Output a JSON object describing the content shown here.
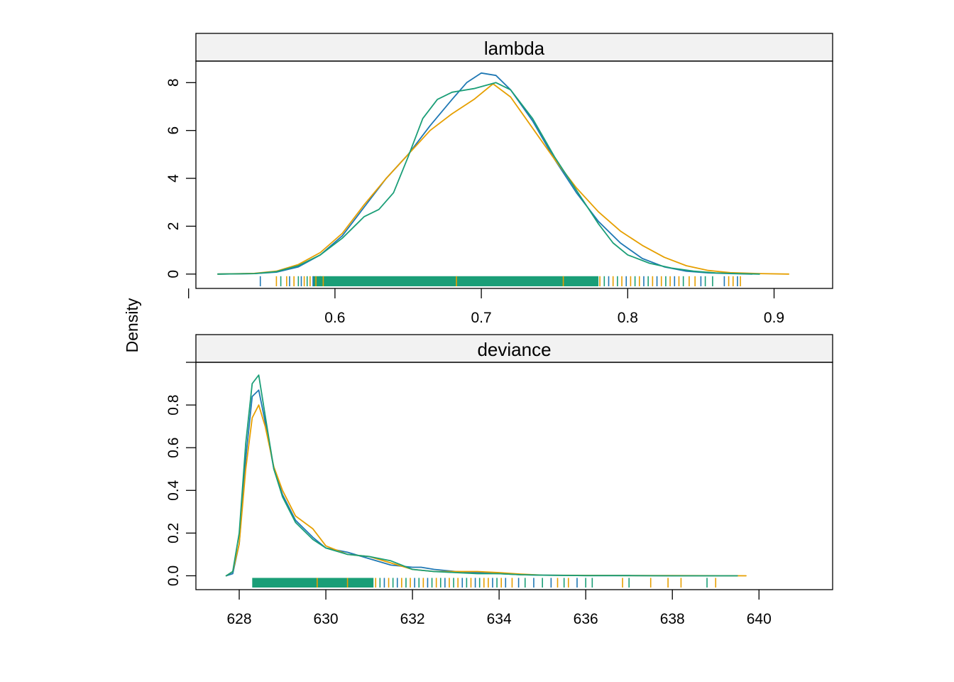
{
  "colors": {
    "chain1": "#1F78B4",
    "chain2": "#E69F00",
    "chain3": "#1A9E77",
    "strip_bg": "#F2F2F2",
    "frame": "#000000"
  },
  "figure": {
    "ylabel": "Density"
  },
  "chart_data": [
    {
      "type": "line",
      "panel": "lambda",
      "title": "lambda",
      "xlim": [
        0.505,
        0.94
      ],
      "ylim": [
        -0.6,
        8.9
      ],
      "xticks": [
        0.6,
        0.7,
        0.8,
        0.9
      ],
      "xtick_labels": [
        "0.6",
        "0.7",
        "0.8",
        "0.9"
      ],
      "extra_xticks": [
        0.5
      ],
      "yticks": [
        0,
        2,
        4,
        6,
        8
      ],
      "ytick_labels": [
        "0",
        "2",
        "4",
        "6",
        "8"
      ],
      "grid": false,
      "series": [
        {
          "color_key": "chain1",
          "x": [
            0.52,
            0.545,
            0.56,
            0.575,
            0.59,
            0.605,
            0.62,
            0.635,
            0.65,
            0.665,
            0.68,
            0.69,
            0.7,
            0.71,
            0.72,
            0.735,
            0.75,
            0.765,
            0.78,
            0.795,
            0.81,
            0.825,
            0.84,
            0.855,
            0.87,
            0.885
          ],
          "y": [
            0.0,
            0.02,
            0.08,
            0.3,
            0.8,
            1.6,
            2.8,
            4.0,
            5.0,
            6.2,
            7.3,
            8.0,
            8.4,
            8.3,
            7.7,
            6.4,
            4.8,
            3.4,
            2.2,
            1.3,
            0.65,
            0.3,
            0.12,
            0.05,
            0.02,
            0.0
          ]
        },
        {
          "color_key": "chain2",
          "x": [
            0.52,
            0.545,
            0.56,
            0.575,
            0.59,
            0.605,
            0.62,
            0.635,
            0.65,
            0.665,
            0.68,
            0.695,
            0.708,
            0.72,
            0.735,
            0.75,
            0.765,
            0.78,
            0.795,
            0.81,
            0.825,
            0.84,
            0.855,
            0.87,
            0.89,
            0.91
          ],
          "y": [
            0.0,
            0.03,
            0.12,
            0.4,
            0.9,
            1.7,
            2.9,
            4.0,
            5.0,
            6.0,
            6.7,
            7.3,
            7.95,
            7.4,
            6.1,
            4.8,
            3.6,
            2.6,
            1.8,
            1.2,
            0.7,
            0.35,
            0.15,
            0.06,
            0.02,
            0.0
          ]
        },
        {
          "color_key": "chain3",
          "x": [
            0.52,
            0.545,
            0.56,
            0.575,
            0.59,
            0.605,
            0.62,
            0.63,
            0.64,
            0.65,
            0.66,
            0.67,
            0.68,
            0.695,
            0.71,
            0.72,
            0.735,
            0.75,
            0.765,
            0.78,
            0.79,
            0.8,
            0.815,
            0.83,
            0.845,
            0.86,
            0.875,
            0.89
          ],
          "y": [
            0.0,
            0.02,
            0.1,
            0.35,
            0.8,
            1.5,
            2.4,
            2.7,
            3.4,
            4.9,
            6.5,
            7.3,
            7.6,
            7.75,
            8.0,
            7.7,
            6.5,
            4.9,
            3.5,
            2.1,
            1.3,
            0.8,
            0.45,
            0.25,
            0.12,
            0.05,
            0.02,
            0.0
          ]
        }
      ],
      "rug": {
        "dense_range": [
          0.585,
          0.78
        ],
        "dense_color_key": "chain3",
        "ticks": [
          {
            "x": 0.549,
            "color_key": "chain1"
          },
          {
            "x": 0.56,
            "color_key": "chain2"
          },
          {
            "x": 0.563,
            "color_key": "chain3"
          },
          {
            "x": 0.567,
            "color_key": "chain2"
          },
          {
            "x": 0.569,
            "color_key": "chain1"
          },
          {
            "x": 0.572,
            "color_key": "chain2"
          },
          {
            "x": 0.575,
            "color_key": "chain3"
          },
          {
            "x": 0.577,
            "color_key": "chain1"
          },
          {
            "x": 0.579,
            "color_key": "chain2"
          },
          {
            "x": 0.581,
            "color_key": "chain3"
          },
          {
            "x": 0.583,
            "color_key": "chain2"
          },
          {
            "x": 0.585,
            "color_key": "chain1"
          },
          {
            "x": 0.587,
            "color_key": "chain2"
          },
          {
            "x": 0.59,
            "color_key": "chain3"
          },
          {
            "x": 0.592,
            "color_key": "chain2"
          },
          {
            "x": 0.683,
            "color_key": "chain2"
          },
          {
            "x": 0.756,
            "color_key": "chain2"
          },
          {
            "x": 0.781,
            "color_key": "chain2"
          },
          {
            "x": 0.784,
            "color_key": "chain3"
          },
          {
            "x": 0.787,
            "color_key": "chain1"
          },
          {
            "x": 0.79,
            "color_key": "chain2"
          },
          {
            "x": 0.793,
            "color_key": "chain3"
          },
          {
            "x": 0.796,
            "color_key": "chain2"
          },
          {
            "x": 0.799,
            "color_key": "chain1"
          },
          {
            "x": 0.802,
            "color_key": "chain2"
          },
          {
            "x": 0.805,
            "color_key": "chain3"
          },
          {
            "x": 0.808,
            "color_key": "chain2"
          },
          {
            "x": 0.811,
            "color_key": "chain1"
          },
          {
            "x": 0.814,
            "color_key": "chain3"
          },
          {
            "x": 0.817,
            "color_key": "chain2"
          },
          {
            "x": 0.82,
            "color_key": "chain1"
          },
          {
            "x": 0.823,
            "color_key": "chain2"
          },
          {
            "x": 0.826,
            "color_key": "chain3"
          },
          {
            "x": 0.829,
            "color_key": "chain2"
          },
          {
            "x": 0.832,
            "color_key": "chain1"
          },
          {
            "x": 0.835,
            "color_key": "chain2"
          },
          {
            "x": 0.838,
            "color_key": "chain3"
          },
          {
            "x": 0.842,
            "color_key": "chain2"
          },
          {
            "x": 0.846,
            "color_key": "chain2"
          },
          {
            "x": 0.85,
            "color_key": "chain1"
          },
          {
            "x": 0.853,
            "color_key": "chain3"
          },
          {
            "x": 0.858,
            "color_key": "chain3"
          },
          {
            "x": 0.866,
            "color_key": "chain1"
          },
          {
            "x": 0.869,
            "color_key": "chain2"
          },
          {
            "x": 0.872,
            "color_key": "chain2"
          },
          {
            "x": 0.875,
            "color_key": "chain1"
          },
          {
            "x": 0.877,
            "color_key": "chain2"
          }
        ]
      }
    },
    {
      "type": "line",
      "panel": "deviance",
      "title": "deviance",
      "xlim": [
        627.0,
        641.7
      ],
      "ylim": [
        -0.065,
        1.0
      ],
      "xticks": [
        628,
        630,
        632,
        634,
        636,
        638,
        640
      ],
      "xtick_labels": [
        "628",
        "630",
        "632",
        "634",
        "636",
        "638",
        "640"
      ],
      "extra_yticks": [
        1.0
      ],
      "yticks": [
        0.0,
        0.2,
        0.4,
        0.6,
        0.8
      ],
      "ytick_labels": [
        "0.0",
        "0.2",
        "0.4",
        "0.6",
        "0.8"
      ],
      "grid": false,
      "series": [
        {
          "color_key": "chain1",
          "x": [
            627.7,
            627.85,
            628.0,
            628.15,
            628.3,
            628.45,
            628.6,
            628.8,
            629.0,
            629.3,
            629.7,
            630.0,
            630.5,
            631.0,
            631.5,
            632.0,
            632.2,
            632.5,
            633.0,
            633.5,
            634.0,
            634.5,
            635.0,
            636.0,
            637.0,
            638.0,
            639.5
          ],
          "y": [
            0.0,
            0.01,
            0.15,
            0.55,
            0.84,
            0.87,
            0.72,
            0.5,
            0.38,
            0.26,
            0.18,
            0.13,
            0.11,
            0.08,
            0.05,
            0.04,
            0.04,
            0.03,
            0.02,
            0.015,
            0.01,
            0.005,
            0.003,
            0.001,
            0.001,
            0.0,
            0.0
          ]
        },
        {
          "color_key": "chain2",
          "x": [
            627.7,
            627.85,
            628.0,
            628.15,
            628.3,
            628.45,
            628.6,
            628.8,
            629.0,
            629.3,
            629.7,
            630.0,
            630.5,
            631.0,
            631.5,
            632.0,
            632.5,
            633.0,
            633.5,
            634.0,
            634.5,
            635.0,
            636.0,
            637.0,
            638.0,
            639.7
          ],
          "y": [
            0.0,
            0.02,
            0.15,
            0.5,
            0.74,
            0.8,
            0.7,
            0.51,
            0.4,
            0.28,
            0.22,
            0.14,
            0.1,
            0.09,
            0.06,
            0.03,
            0.02,
            0.02,
            0.02,
            0.015,
            0.008,
            0.003,
            0.002,
            0.001,
            0.001,
            0.0
          ]
        },
        {
          "color_key": "chain3",
          "x": [
            627.7,
            627.85,
            628.0,
            628.15,
            628.3,
            628.45,
            628.6,
            628.8,
            629.0,
            629.3,
            629.7,
            630.0,
            630.5,
            631.0,
            631.5,
            632.0,
            632.5,
            633.0,
            633.5,
            634.0,
            634.5,
            635.0,
            636.0,
            637.0,
            638.0,
            639.5
          ],
          "y": [
            0.0,
            0.02,
            0.2,
            0.62,
            0.9,
            0.94,
            0.75,
            0.5,
            0.37,
            0.25,
            0.17,
            0.13,
            0.1,
            0.09,
            0.07,
            0.03,
            0.02,
            0.015,
            0.01,
            0.01,
            0.005,
            0.003,
            0.001,
            0.001,
            0.0,
            0.0
          ]
        }
      ],
      "rug": {
        "dense_range": [
          628.3,
          631.1
        ],
        "dense_color_key": "chain3",
        "ticks": [
          {
            "x": 629.8,
            "color_key": "chain2"
          },
          {
            "x": 630.5,
            "color_key": "chain2"
          },
          {
            "x": 631.15,
            "color_key": "chain2"
          },
          {
            "x": 631.25,
            "color_key": "chain3"
          },
          {
            "x": 631.35,
            "color_key": "chain1"
          },
          {
            "x": 631.45,
            "color_key": "chain2"
          },
          {
            "x": 631.55,
            "color_key": "chain3"
          },
          {
            "x": 631.65,
            "color_key": "chain1"
          },
          {
            "x": 631.75,
            "color_key": "chain2"
          },
          {
            "x": 631.85,
            "color_key": "chain3"
          },
          {
            "x": 631.95,
            "color_key": "chain2"
          },
          {
            "x": 632.05,
            "color_key": "chain1"
          },
          {
            "x": 632.15,
            "color_key": "chain3"
          },
          {
            "x": 632.25,
            "color_key": "chain2"
          },
          {
            "x": 632.35,
            "color_key": "chain1"
          },
          {
            "x": 632.45,
            "color_key": "chain3"
          },
          {
            "x": 632.55,
            "color_key": "chain2"
          },
          {
            "x": 632.65,
            "color_key": "chain3"
          },
          {
            "x": 632.75,
            "color_key": "chain1"
          },
          {
            "x": 632.85,
            "color_key": "chain2"
          },
          {
            "x": 632.95,
            "color_key": "chain3"
          },
          {
            "x": 633.05,
            "color_key": "chain2"
          },
          {
            "x": 633.15,
            "color_key": "chain1"
          },
          {
            "x": 633.25,
            "color_key": "chain3"
          },
          {
            "x": 633.35,
            "color_key": "chain2"
          },
          {
            "x": 633.45,
            "color_key": "chain1"
          },
          {
            "x": 633.55,
            "color_key": "chain3"
          },
          {
            "x": 633.65,
            "color_key": "chain2"
          },
          {
            "x": 633.75,
            "color_key": "chain2"
          },
          {
            "x": 633.85,
            "color_key": "chain1"
          },
          {
            "x": 633.95,
            "color_key": "chain3"
          },
          {
            "x": 634.05,
            "color_key": "chain2"
          },
          {
            "x": 634.15,
            "color_key": "chain1"
          },
          {
            "x": 634.3,
            "color_key": "chain2"
          },
          {
            "x": 634.45,
            "color_key": "chain1"
          },
          {
            "x": 634.6,
            "color_key": "chain3"
          },
          {
            "x": 634.8,
            "color_key": "chain1"
          },
          {
            "x": 635.0,
            "color_key": "chain3"
          },
          {
            "x": 635.2,
            "color_key": "chain1"
          },
          {
            "x": 635.35,
            "color_key": "chain2"
          },
          {
            "x": 635.5,
            "color_key": "chain3"
          },
          {
            "x": 635.6,
            "color_key": "chain2"
          },
          {
            "x": 635.8,
            "color_key": "chain1"
          },
          {
            "x": 636.0,
            "color_key": "chain3"
          },
          {
            "x": 636.15,
            "color_key": "chain3"
          },
          {
            "x": 636.85,
            "color_key": "chain2"
          },
          {
            "x": 637.0,
            "color_key": "chain3"
          },
          {
            "x": 637.5,
            "color_key": "chain2"
          },
          {
            "x": 637.9,
            "color_key": "chain2"
          },
          {
            "x": 638.2,
            "color_key": "chain2"
          },
          {
            "x": 638.8,
            "color_key": "chain3"
          },
          {
            "x": 639.0,
            "color_key": "chain2"
          }
        ]
      }
    }
  ]
}
